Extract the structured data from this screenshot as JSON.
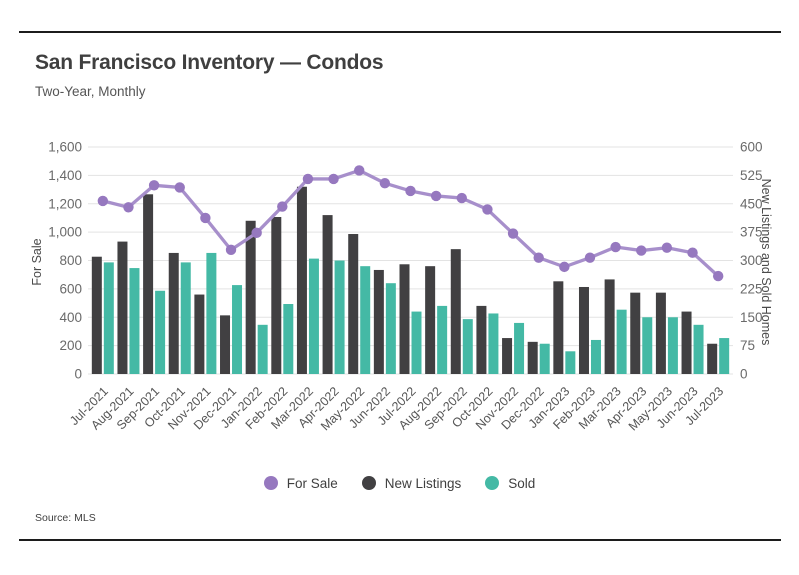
{
  "header": {
    "title": "San Francisco Inventory — Condos",
    "subtitle": "Two-Year, Monthly"
  },
  "source": "Source: MLS",
  "colors": {
    "for_sale_line": "#a78fcb",
    "for_sale_dot": "#9678bf",
    "new_listings": "#414042",
    "sold": "#44b9a5",
    "grid": "#e3e3e3",
    "rule": "#1c1c1c",
    "axis_text": "#6a6a6a",
    "x_label_text": "#555555"
  },
  "legend": {
    "items": [
      {
        "label": "For Sale",
        "color_key": "for_sale_dot",
        "marker": "circle"
      },
      {
        "label": "New Listings",
        "color_key": "new_listings",
        "marker": "circle"
      },
      {
        "label": "Sold",
        "color_key": "sold",
        "marker": "circle"
      }
    ]
  },
  "chart_data": {
    "type": "composite",
    "title": "San Francisco Inventory — Condos",
    "subtitle": "Two-Year, Monthly",
    "grid": true,
    "legend_position": "bottom",
    "categories": [
      "Jul-2021",
      "Aug-2021",
      "Sep-2021",
      "Oct-2021",
      "Nov-2021",
      "Dec-2021",
      "Jan-2022",
      "Feb-2022",
      "Mar-2022",
      "Apr-2022",
      "May-2022",
      "Jun-2022",
      "Jul-2022",
      "Aug-2022",
      "Sep-2022",
      "Oct-2022",
      "Nov-2022",
      "Dec-2022",
      "Jan-2023",
      "Feb-2023",
      "Mar-2023",
      "Apr-2023",
      "May-2023",
      "Jun-2023",
      "Jul-2023"
    ],
    "left_axis": {
      "label": "For Sale",
      "min": 0,
      "max": 1600,
      "step": 200
    },
    "right_axis": {
      "label": "New Listings and Sold Homes",
      "min": 0,
      "max": 600,
      "step": 75
    },
    "series": [
      {
        "name": "For Sale",
        "type": "line",
        "axis": "left",
        "values": [
          1220,
          1175,
          1330,
          1315,
          1100,
          875,
          995,
          1180,
          1375,
          1375,
          1435,
          1345,
          1290,
          1255,
          1240,
          1160,
          990,
          820,
          755,
          820,
          895,
          870,
          890,
          855,
          690
        ]
      },
      {
        "name": "New Listings",
        "type": "bar",
        "axis": "right",
        "values": [
          310,
          350,
          475,
          320,
          210,
          155,
          405,
          415,
          495,
          420,
          370,
          275,
          290,
          285,
          330,
          180,
          95,
          85,
          245,
          230,
          250,
          215,
          215,
          165,
          80
        ]
      },
      {
        "name": "Sold",
        "type": "bar",
        "axis": "right",
        "values": [
          295,
          280,
          220,
          295,
          320,
          235,
          130,
          185,
          305,
          300,
          285,
          240,
          165,
          180,
          145,
          160,
          135,
          80,
          60,
          90,
          170,
          150,
          150,
          130,
          95
        ]
      }
    ]
  }
}
